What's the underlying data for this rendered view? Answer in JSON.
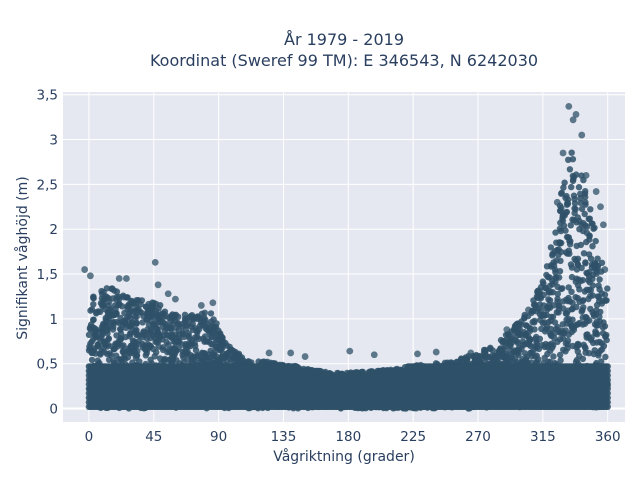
{
  "chart_data": {
    "type": "scatter",
    "title_line1": "År 1979 - 2019",
    "title_line2": "Koordinat (Sweref 99 TM): E 346543, N 6242030",
    "xlabel": "Vågriktning (grader)",
    "ylabel": "Signifikant våghöjd (m)",
    "xlim": [
      -18,
      372
    ],
    "ylim": [
      -0.15,
      3.53
    ],
    "x_ticks": [
      0,
      45,
      90,
      135,
      180,
      225,
      270,
      315,
      360
    ],
    "x_tick_labels": [
      "0",
      "45",
      "90",
      "135",
      "180",
      "225",
      "270",
      "315",
      "360"
    ],
    "y_ticks": [
      0,
      0.5,
      1,
      1.5,
      2,
      2.5,
      3,
      3.5
    ],
    "y_tick_labels": [
      "0",
      "0,5",
      "1",
      "1,5",
      "2",
      "2,5",
      "3",
      "3,5"
    ],
    "grid": true,
    "marker_color": "#2f5168",
    "plot_background": "#e5e8f0",
    "envelope": [
      {
        "x": 0,
        "max": 1.3
      },
      {
        "x": 15,
        "max": 1.35
      },
      {
        "x": 30,
        "max": 1.25
      },
      {
        "x": 45,
        "max": 1.2
      },
      {
        "x": 60,
        "max": 1.05
      },
      {
        "x": 75,
        "max": 1.05
      },
      {
        "x": 85,
        "max": 1.1
      },
      {
        "x": 95,
        "max": 0.72
      },
      {
        "x": 110,
        "max": 0.55
      },
      {
        "x": 135,
        "max": 0.5
      },
      {
        "x": 160,
        "max": 0.42
      },
      {
        "x": 180,
        "max": 0.4
      },
      {
        "x": 200,
        "max": 0.42
      },
      {
        "x": 225,
        "max": 0.48
      },
      {
        "x": 250,
        "max": 0.52
      },
      {
        "x": 270,
        "max": 0.62
      },
      {
        "x": 285,
        "max": 0.75
      },
      {
        "x": 300,
        "max": 1.0
      },
      {
        "x": 310,
        "max": 1.25
      },
      {
        "x": 320,
        "max": 1.75
      },
      {
        "x": 330,
        "max": 2.6
      },
      {
        "x": 335,
        "max": 3.0
      },
      {
        "x": 340,
        "max": 2.8
      },
      {
        "x": 350,
        "max": 2.1
      },
      {
        "x": 360,
        "max": 1.4
      }
    ],
    "outliers": [
      {
        "x": -3,
        "y": 1.55
      },
      {
        "x": 1,
        "y": 1.48
      },
      {
        "x": 21,
        "y": 1.45
      },
      {
        "x": 26,
        "y": 1.45
      },
      {
        "x": 44,
        "y": 1.18
      },
      {
        "x": 46,
        "y": 1.63
      },
      {
        "x": 48,
        "y": 1.38
      },
      {
        "x": 55,
        "y": 1.28
      },
      {
        "x": 60,
        "y": 1.22
      },
      {
        "x": 78,
        "y": 1.15
      },
      {
        "x": 86,
        "y": 1.18
      },
      {
        "x": 125,
        "y": 0.62
      },
      {
        "x": 140,
        "y": 0.62
      },
      {
        "x": 150,
        "y": 0.58
      },
      {
        "x": 181,
        "y": 0.64
      },
      {
        "x": 198,
        "y": 0.6
      },
      {
        "x": 228,
        "y": 0.61
      },
      {
        "x": 241,
        "y": 0.63
      },
      {
        "x": 265,
        "y": 0.62
      },
      {
        "x": 275,
        "y": 0.65
      },
      {
        "x": 290,
        "y": 0.88
      },
      {
        "x": 296,
        "y": 0.92
      },
      {
        "x": 305,
        "y": 1.1
      },
      {
        "x": 313,
        "y": 1.3
      },
      {
        "x": 325,
        "y": 2.3
      },
      {
        "x": 329,
        "y": 2.85
      },
      {
        "x": 333,
        "y": 3.37
      },
      {
        "x": 336,
        "y": 3.22
      },
      {
        "x": 338,
        "y": 3.28
      },
      {
        "x": 342,
        "y": 3.05
      },
      {
        "x": 345,
        "y": 2.6
      },
      {
        "x": 352,
        "y": 2.42
      },
      {
        "x": 355,
        "y": 2.25
      },
      {
        "x": 358,
        "y": 1.55
      },
      {
        "x": 357,
        "y": 2.05
      }
    ]
  }
}
